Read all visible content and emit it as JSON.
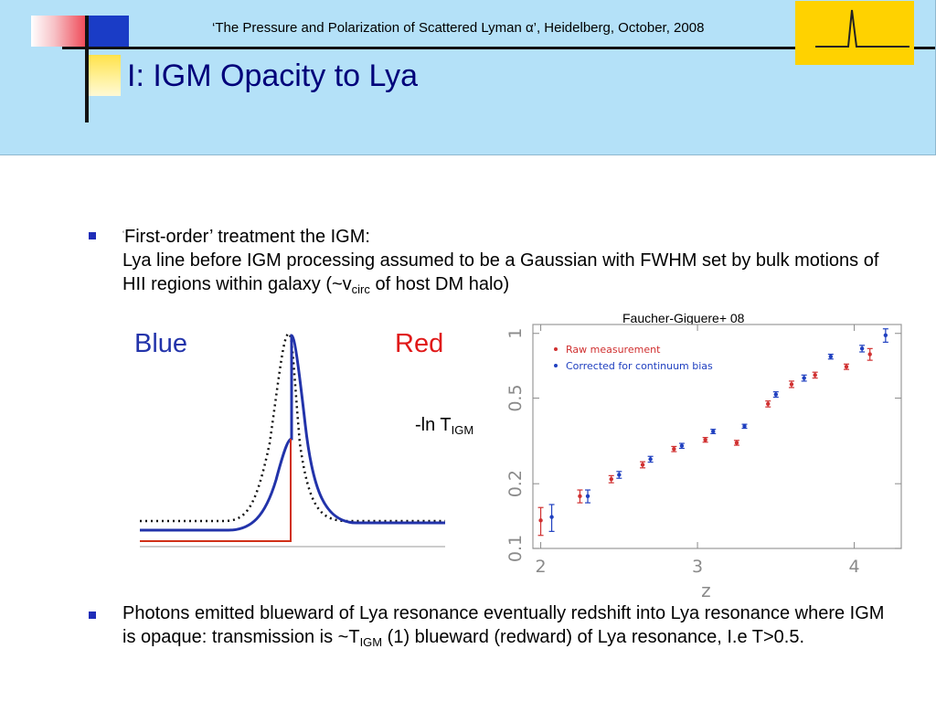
{
  "header": {
    "conference": "‘The Pressure and Polarization of Scattered Lyman α’, Heidelberg, October, 2008",
    "title": "I: IGM Opacity to Lya"
  },
  "bullets": [
    {
      "line1_quote_open": "‘",
      "line1": "First-order’  treatment the IGM:",
      "line2_a": "Lya line before IGM processing assumed to be a Gaussian with FWHM set by bulk motions of HII regions within galaxy (~v",
      "line2_sub": "circ",
      "line2_b": " of host DM halo)"
    },
    {
      "text_a": "Photons emitted blueward of Lya resonance eventually redshift into Lya resonance where IGM is opaque: transmission is ~T",
      "text_sub": "IGM",
      "text_b": " (1) blueward (redward) of Lya resonance, I.e T>0.5."
    }
  ],
  "profile_figure": {
    "label_blue": "Blue",
    "label_red": "Red",
    "colors": {
      "blue": "#2233aa",
      "red": "#e01818"
    }
  },
  "annotation": {
    "prefix": "-ln T",
    "sub": "IGM"
  },
  "chart_data": {
    "type": "scatter",
    "credit": "Faucher-Giguere+ 08",
    "xlabel": "z",
    "ylabel": "-ln T_IGM",
    "xlim": [
      1.95,
      4.3
    ],
    "ylim": [
      0.1,
      1.1
    ],
    "yscale": "log",
    "xticks": [
      "2",
      "3",
      "4"
    ],
    "yticks": [
      "0.1",
      "0.2",
      "0.5",
      "1"
    ],
    "legend_position": "top-left",
    "series": [
      {
        "name": "Raw measurement",
        "color": "#d03030",
        "points": [
          [
            2.0,
            0.135,
            0.02
          ],
          [
            2.25,
            0.175,
            0.012
          ],
          [
            2.45,
            0.21,
            0.008
          ],
          [
            2.65,
            0.245,
            0.008
          ],
          [
            2.85,
            0.29,
            0.008
          ],
          [
            3.05,
            0.32,
            0.008
          ],
          [
            3.25,
            0.31,
            0.008
          ],
          [
            3.45,
            0.47,
            0.015
          ],
          [
            3.6,
            0.58,
            0.02
          ],
          [
            3.75,
            0.64,
            0.02
          ],
          [
            3.95,
            0.7,
            0.02
          ],
          [
            4.1,
            0.8,
            0.05
          ]
        ]
      },
      {
        "name": "Corrected for continuum bias",
        "color": "#2040c0",
        "points": [
          [
            2.07,
            0.14,
            0.02
          ],
          [
            2.3,
            0.175,
            0.012
          ],
          [
            2.5,
            0.22,
            0.008
          ],
          [
            2.7,
            0.26,
            0.008
          ],
          [
            2.9,
            0.3,
            0.008
          ],
          [
            3.1,
            0.35,
            0.008
          ],
          [
            3.3,
            0.37,
            0.008
          ],
          [
            3.5,
            0.52,
            0.015
          ],
          [
            3.68,
            0.62,
            0.02
          ],
          [
            3.85,
            0.78,
            0.02
          ],
          [
            4.05,
            0.85,
            0.03
          ],
          [
            4.2,
            0.98,
            0.07
          ]
        ]
      }
    ]
  }
}
